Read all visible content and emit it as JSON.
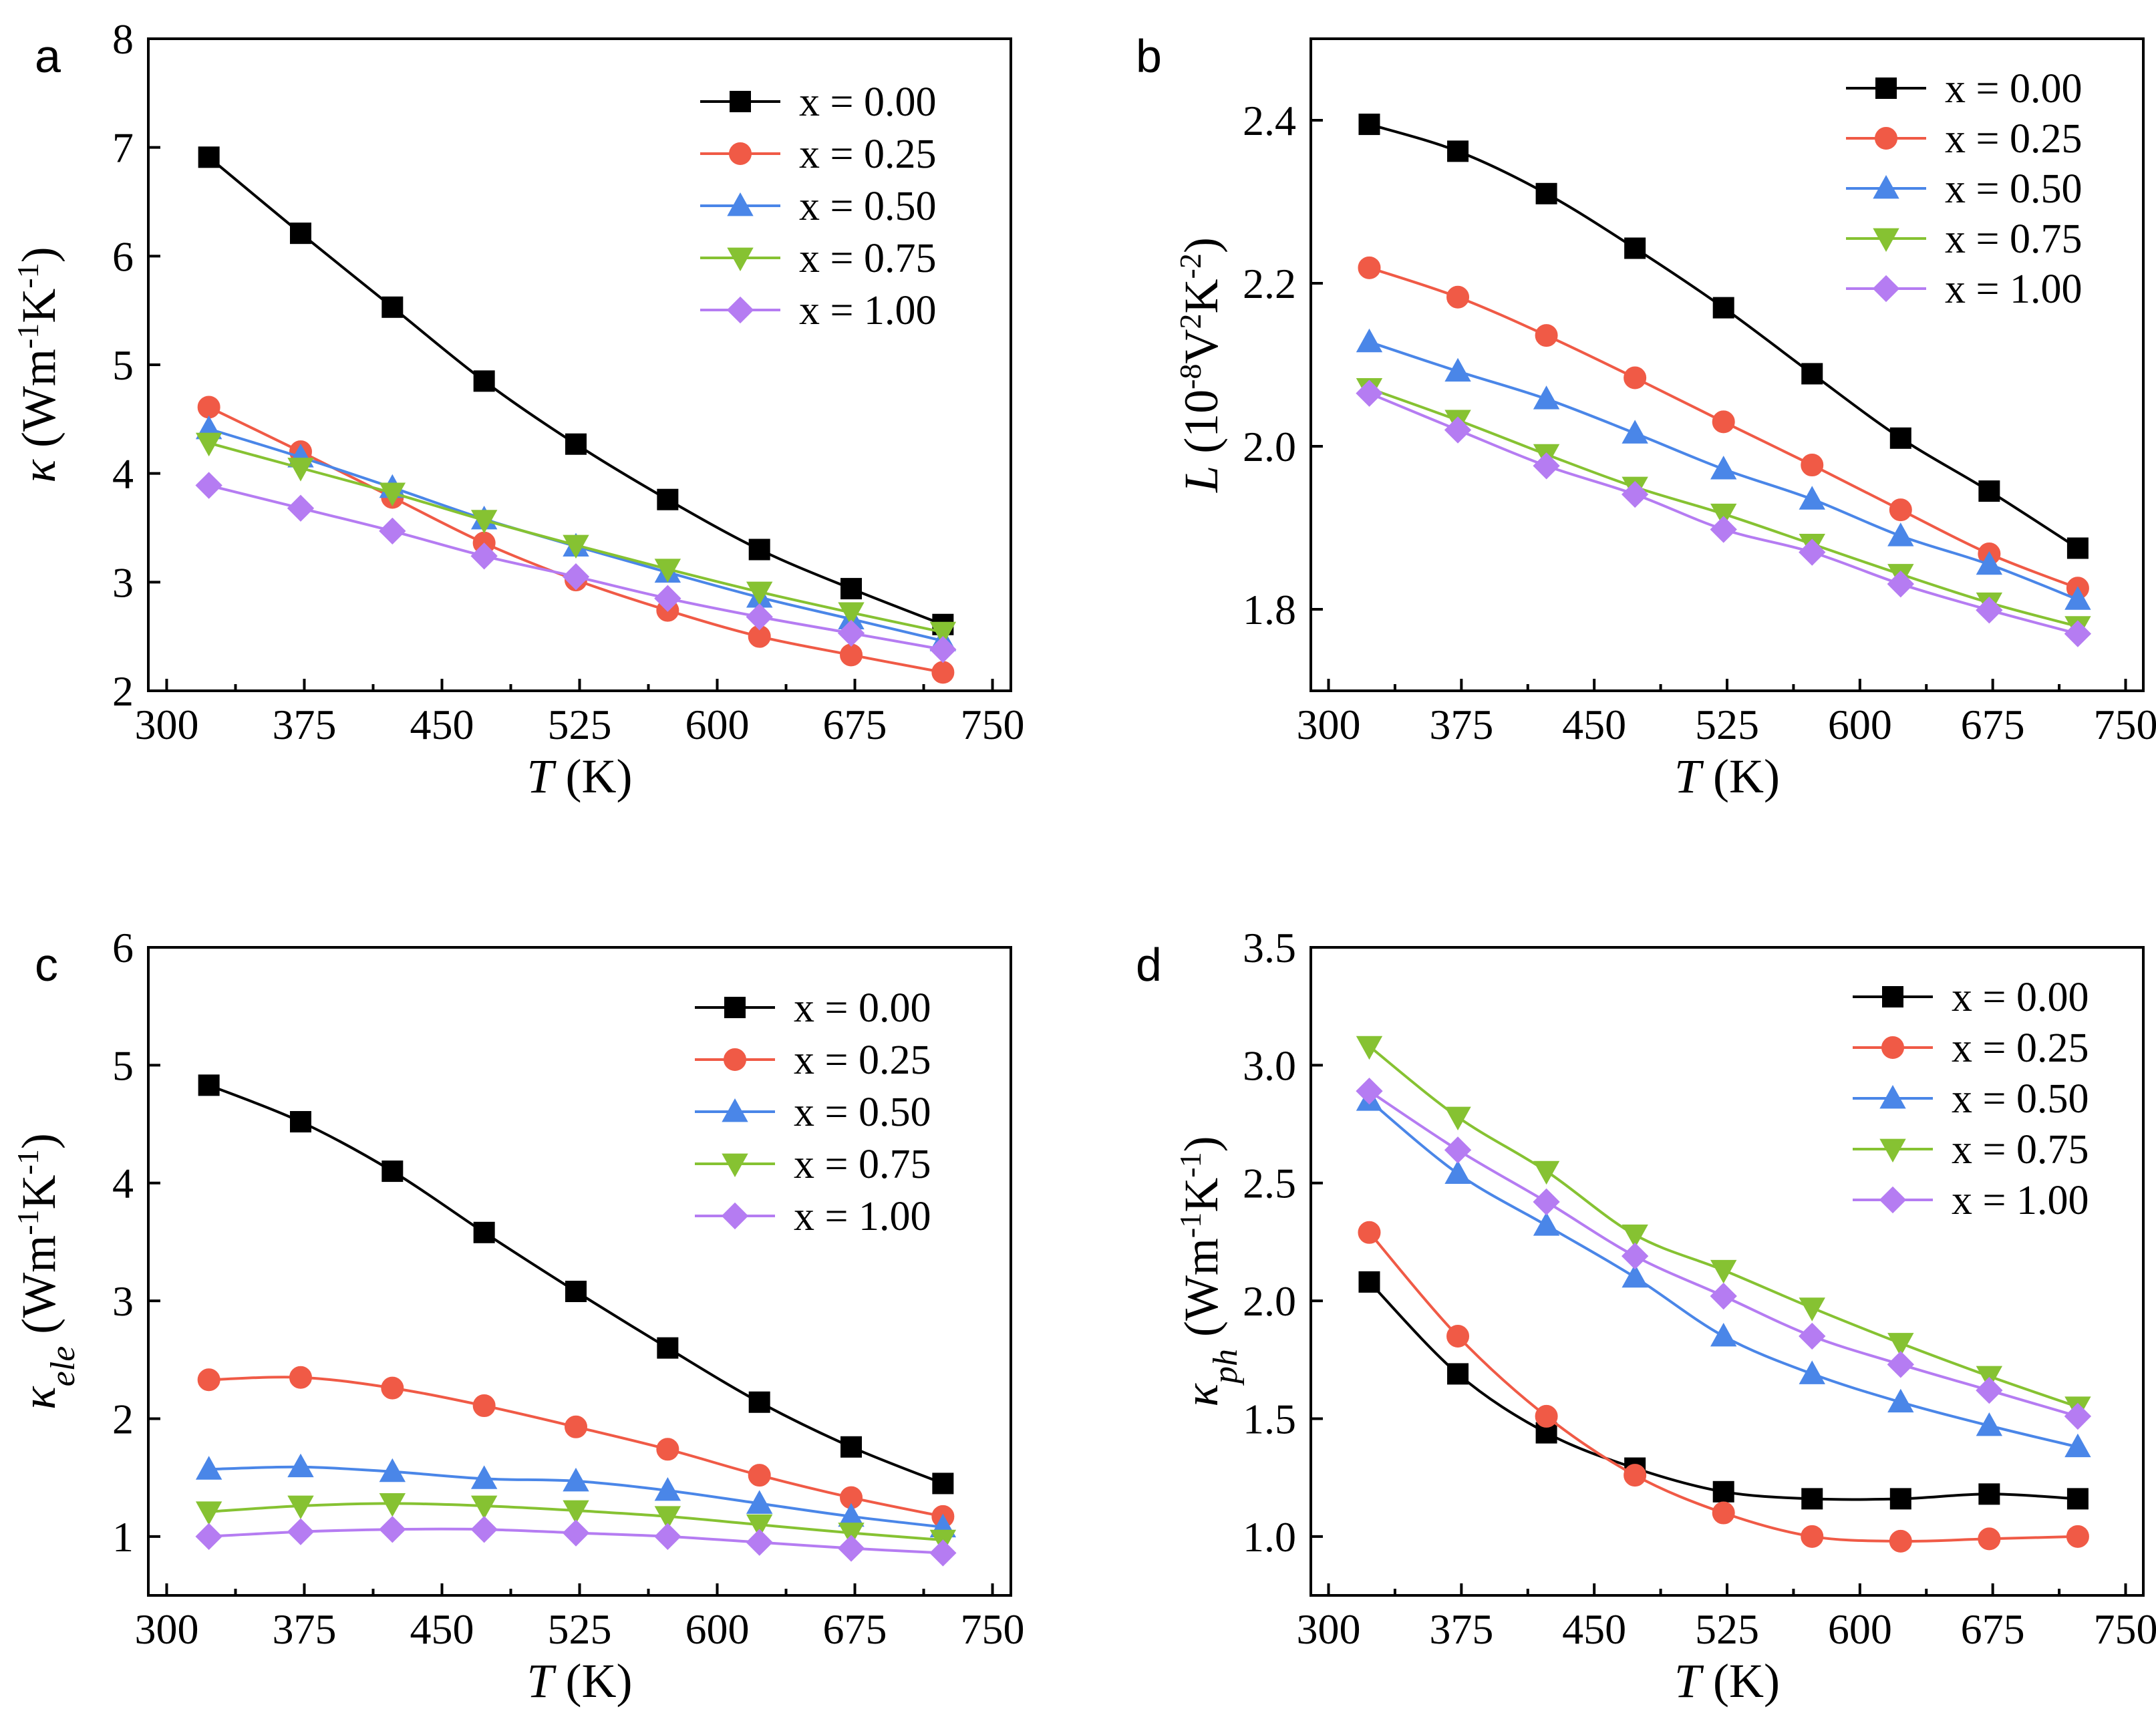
{
  "figure": {
    "series_colors": [
      "#000000",
      "#f05a46",
      "#4a86e8",
      "#86c232",
      "#b57cf2"
    ],
    "series_markers": [
      "square",
      "circle",
      "triangle-up",
      "triangle-down",
      "diamond"
    ]
  },
  "chart_data": [
    {
      "panel": "a",
      "type": "line",
      "xlabel_italic": "T",
      "xlabel_unit": "(K)",
      "ylabel_symbol": "κ",
      "ylabel_unit": "(Wm-1K-1)",
      "xlim": [
        290,
        760
      ],
      "ylim": [
        2,
        8
      ],
      "xticks": [
        300,
        375,
        450,
        525,
        600,
        675,
        750
      ],
      "yticks": [
        2,
        3,
        4,
        5,
        6,
        7,
        8
      ],
      "ytick_labels": [
        "2",
        "3",
        "4",
        "5",
        "6",
        "7",
        "8"
      ],
      "x": [
        323,
        373,
        423,
        473,
        523,
        573,
        623,
        673,
        723
      ],
      "legend_position": "top-right",
      "series": [
        {
          "name": "x = 0.00",
          "values": [
            6.91,
            6.21,
            5.53,
            4.85,
            4.27,
            3.76,
            3.3,
            2.94,
            2.61
          ]
        },
        {
          "name": "x = 0.25",
          "values": [
            4.61,
            4.2,
            3.78,
            3.36,
            3.02,
            2.74,
            2.5,
            2.33,
            2.17
          ]
        },
        {
          "name": "x = 0.50",
          "values": [
            4.41,
            4.15,
            3.87,
            3.58,
            3.33,
            3.09,
            2.86,
            2.66,
            2.46
          ]
        },
        {
          "name": "x = 0.75",
          "values": [
            4.28,
            4.05,
            3.82,
            3.57,
            3.34,
            3.12,
            2.91,
            2.72,
            2.54
          ]
        },
        {
          "name": "x = 1.00",
          "values": [
            3.89,
            3.68,
            3.47,
            3.24,
            3.05,
            2.85,
            2.68,
            2.53,
            2.38
          ]
        }
      ]
    },
    {
      "panel": "b",
      "type": "line",
      "xlabel_italic": "T",
      "xlabel_unit": "(K)",
      "ylabel_symbol": "L",
      "ylabel_unit": "(10-8V2K-2)",
      "xlim": [
        290,
        760
      ],
      "ylim": [
        1.7,
        2.5
      ],
      "xticks": [
        300,
        375,
        450,
        525,
        600,
        675,
        750
      ],
      "yticks": [
        1.8,
        2.0,
        2.2,
        2.4
      ],
      "ytick_labels": [
        "1.8",
        "2.0",
        "2.2",
        "2.4"
      ],
      "x": [
        323,
        373,
        423,
        473,
        523,
        573,
        623,
        673,
        723
      ],
      "legend_position": "top-right",
      "series": [
        {
          "name": "x = 0.00",
          "values": [
            2.395,
            2.362,
            2.31,
            2.243,
            2.17,
            2.089,
            2.01,
            1.945,
            1.875
          ]
        },
        {
          "name": "x = 0.25",
          "values": [
            2.219,
            2.183,
            2.136,
            2.084,
            2.03,
            1.977,
            1.922,
            1.868,
            1.826
          ]
        },
        {
          "name": "x = 0.50",
          "values": [
            2.128,
            2.092,
            2.058,
            2.016,
            1.972,
            1.935,
            1.89,
            1.855,
            1.812
          ]
        },
        {
          "name": "x = 0.75",
          "values": [
            2.071,
            2.032,
            1.99,
            1.95,
            1.917,
            1.88,
            1.843,
            1.808,
            1.779
          ]
        },
        {
          "name": "x = 1.00",
          "values": [
            2.065,
            2.02,
            1.976,
            1.941,
            1.898,
            1.87,
            1.831,
            1.799,
            1.77
          ]
        }
      ]
    },
    {
      "panel": "c",
      "type": "line",
      "xlabel_italic": "T",
      "xlabel_unit": "(K)",
      "ylabel_symbol": "κ",
      "ylabel_sub": "ele",
      "ylabel_unit": "(Wm-1K-1)",
      "xlim": [
        290,
        760
      ],
      "ylim": [
        0.5,
        6
      ],
      "xticks": [
        300,
        375,
        450,
        525,
        600,
        675,
        750
      ],
      "yticks": [
        1,
        2,
        3,
        4,
        5,
        6
      ],
      "ytick_labels": [
        "1",
        "2",
        "3",
        "4",
        "5",
        "6"
      ],
      "x": [
        323,
        373,
        423,
        473,
        523,
        573,
        623,
        673,
        723
      ],
      "legend_position": "top-right",
      "series": [
        {
          "name": "x = 0.00",
          "values": [
            4.83,
            4.52,
            4.1,
            3.58,
            3.08,
            2.6,
            2.14,
            1.76,
            1.45
          ]
        },
        {
          "name": "x = 0.25",
          "values": [
            2.33,
            2.35,
            2.26,
            2.11,
            1.93,
            1.74,
            1.52,
            1.33,
            1.17
          ]
        },
        {
          "name": "x = 0.50",
          "values": [
            1.57,
            1.59,
            1.55,
            1.49,
            1.47,
            1.39,
            1.28,
            1.17,
            1.08
          ]
        },
        {
          "name": "x = 0.75",
          "values": [
            1.21,
            1.26,
            1.28,
            1.26,
            1.22,
            1.17,
            1.1,
            1.03,
            0.97
          ]
        },
        {
          "name": "x = 1.00",
          "values": [
            1.0,
            1.04,
            1.06,
            1.06,
            1.03,
            1.0,
            0.95,
            0.9,
            0.86
          ]
        }
      ]
    },
    {
      "panel": "d",
      "type": "line",
      "xlabel_italic": "T",
      "xlabel_unit": "(K)",
      "ylabel_symbol": "κ",
      "ylabel_sub": "ph",
      "ylabel_unit": "(Wm-1K-1)",
      "xlim": [
        290,
        760
      ],
      "ylim": [
        0.75,
        3.5
      ],
      "xticks": [
        300,
        375,
        450,
        525,
        600,
        675,
        750
      ],
      "yticks": [
        1.0,
        1.5,
        2.0,
        2.5,
        3.0,
        3.5
      ],
      "ytick_labels": [
        "1.0",
        "1.5",
        "2.0",
        "2.5",
        "3.0",
        "3.5"
      ],
      "x": [
        323,
        373,
        423,
        473,
        523,
        573,
        623,
        673,
        723
      ],
      "legend_position": "top-right",
      "series": [
        {
          "name": "x = 0.00",
          "values": [
            2.08,
            1.69,
            1.44,
            1.29,
            1.19,
            1.16,
            1.16,
            1.18,
            1.16
          ]
        },
        {
          "name": "x = 0.25",
          "values": [
            2.29,
            1.85,
            1.51,
            1.26,
            1.1,
            1.0,
            0.98,
            0.99,
            1.0
          ]
        },
        {
          "name": "x = 0.50",
          "values": [
            2.85,
            2.54,
            2.32,
            2.1,
            1.85,
            1.69,
            1.57,
            1.47,
            1.38
          ]
        },
        {
          "name": "x = 0.75",
          "values": [
            3.08,
            2.78,
            2.55,
            2.28,
            2.13,
            1.97,
            1.82,
            1.68,
            1.55
          ]
        },
        {
          "name": "x = 1.00",
          "values": [
            2.89,
            2.64,
            2.42,
            2.19,
            2.02,
            1.85,
            1.73,
            1.62,
            1.51
          ]
        }
      ]
    }
  ]
}
